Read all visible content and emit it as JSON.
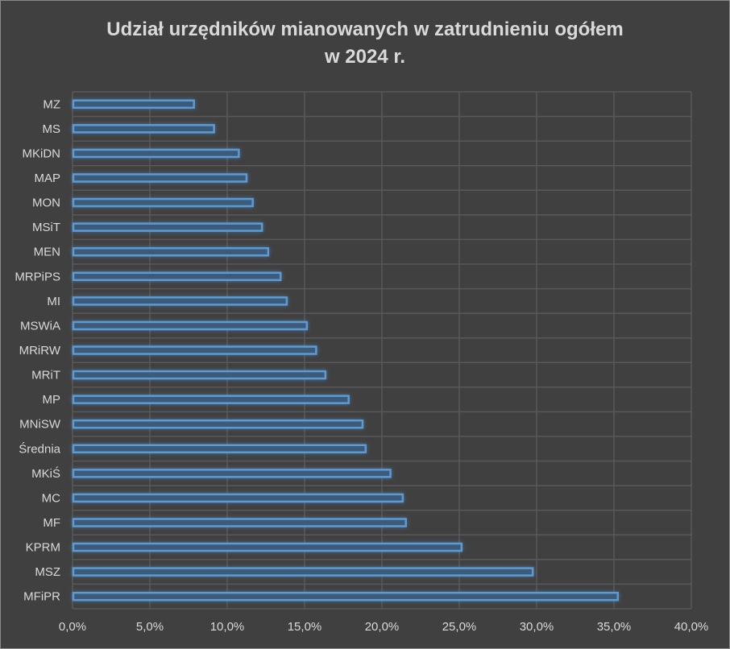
{
  "chart_data": {
    "type": "bar",
    "orientation": "horizontal",
    "title_line1": "Udział urzędników mianowanych w zatrudnieniu ogółem",
    "title_line2": "w 2024 r.",
    "categories": [
      "MZ",
      "MS",
      "MKiDN",
      "MAP",
      "MON",
      "MSiT",
      "MEN",
      "MRPiPS",
      "MI",
      "MSWiA",
      "MRiRW",
      "MRiT",
      "MP",
      "MNiSW",
      "Średnia",
      "MKiŚ",
      "MC",
      "MF",
      "KPRM",
      "MSZ",
      "MFiPR"
    ],
    "values": [
      7.9,
      9.2,
      10.8,
      11.3,
      11.7,
      12.3,
      12.7,
      13.5,
      13.9,
      15.2,
      15.8,
      16.4,
      17.9,
      18.8,
      19.0,
      20.6,
      21.4,
      21.6,
      25.2,
      29.8,
      35.3
    ],
    "unit": "%",
    "xlim": [
      0,
      40
    ],
    "xticks": [
      "0,0%",
      "5,0%",
      "10,0%",
      "15,0%",
      "20,0%",
      "25,0%",
      "30,0%",
      "35,0%",
      "40,0%"
    ],
    "grid": true,
    "legend": "none",
    "colors": {
      "bar_fill": "#3d5a78",
      "bar_edge": "#5b9bd5",
      "grid": "#595959",
      "text": "#d9d9d9",
      "background": "#404040"
    }
  }
}
